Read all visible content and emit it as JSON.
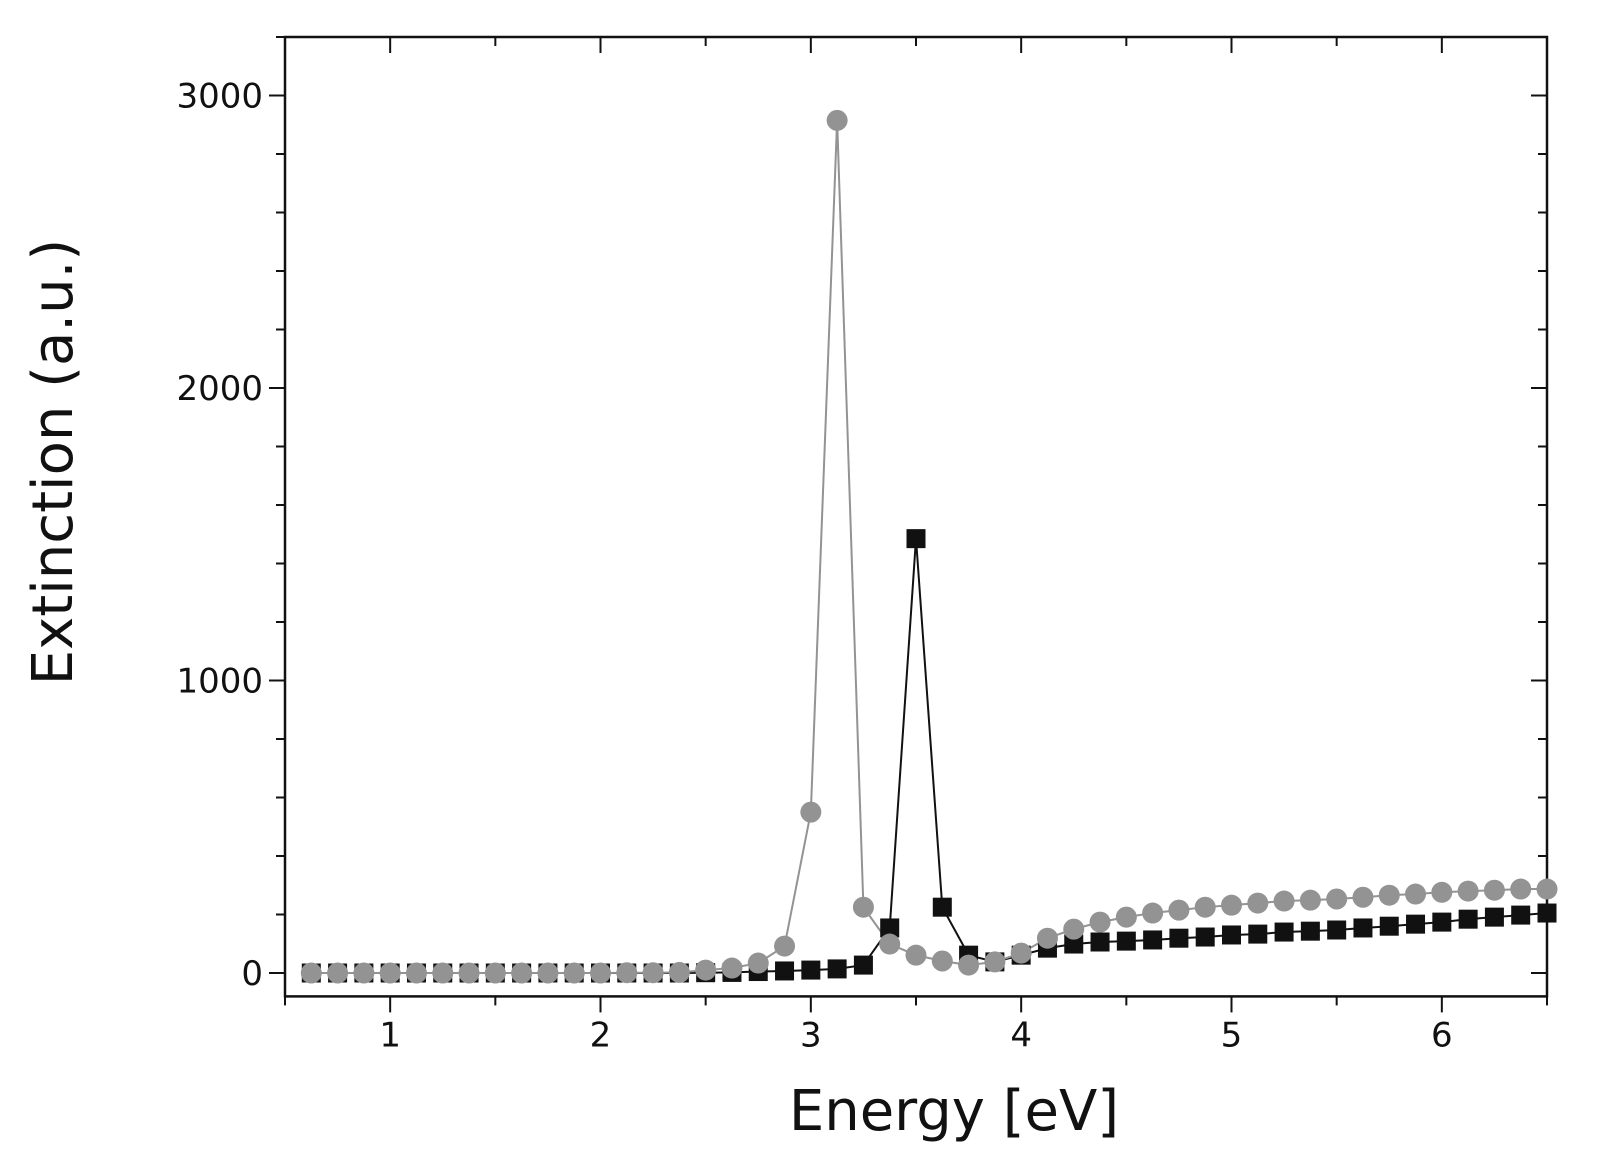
{
  "chart_data": {
    "type": "scatter",
    "title": "",
    "xlabel": "Energy [eV]",
    "ylabel": "Extinction (a.u.)",
    "xlim": [
      0.5,
      6.5
    ],
    "ylim": [
      -80,
      3200
    ],
    "xticks": [
      1,
      2,
      3,
      4,
      5,
      6
    ],
    "yticks": [
      0,
      1000,
      2000,
      3000
    ],
    "xtick_labels": [
      "1",
      "2",
      "3",
      "4",
      "5",
      "6"
    ],
    "ytick_labels": [
      "0",
      "1000",
      "2000",
      "3000"
    ],
    "grid": false,
    "legend": "none",
    "x": [
      0.625,
      0.75,
      0.875,
      1.0,
      1.125,
      1.25,
      1.375,
      1.5,
      1.625,
      1.75,
      1.875,
      2.0,
      2.125,
      2.25,
      2.375,
      2.5,
      2.625,
      2.75,
      2.875,
      3.0,
      3.125,
      3.25,
      3.375,
      3.5,
      3.625,
      3.75,
      3.875,
      4.0,
      4.125,
      4.25,
      4.375,
      4.5,
      4.625,
      4.75,
      4.875,
      5.0,
      5.125,
      5.25,
      5.375,
      5.5,
      5.625,
      5.75,
      5.875,
      6.0,
      6.125,
      6.25,
      6.375,
      6.5
    ],
    "series": [
      {
        "marker": "square",
        "color": "#111111",
        "values": [
          0,
          0,
          0,
          0,
          0,
          0,
          0,
          0,
          0,
          0,
          0,
          0,
          0,
          0,
          0,
          1,
          2,
          5,
          7,
          10,
          14,
          27,
          154,
          1485,
          225,
          61,
          38,
          61,
          85,
          99,
          106,
          109,
          113,
          119,
          123,
          130,
          133,
          140,
          143,
          147,
          154,
          160,
          167,
          174,
          184,
          191,
          198,
          205
        ]
      },
      {
        "marker": "circle",
        "color": "#939393",
        "values": [
          0,
          0,
          0,
          0,
          0,
          0,
          0,
          0,
          0,
          0,
          0,
          0,
          1,
          1,
          2,
          10,
          17,
          34,
          92,
          550,
          2915,
          225,
          99,
          61,
          41,
          27,
          38,
          68,
          119,
          150,
          174,
          191,
          205,
          215,
          225,
          232,
          239,
          246,
          249,
          253,
          259,
          266,
          270,
          276,
          280,
          283,
          287,
          287
        ]
      }
    ]
  }
}
